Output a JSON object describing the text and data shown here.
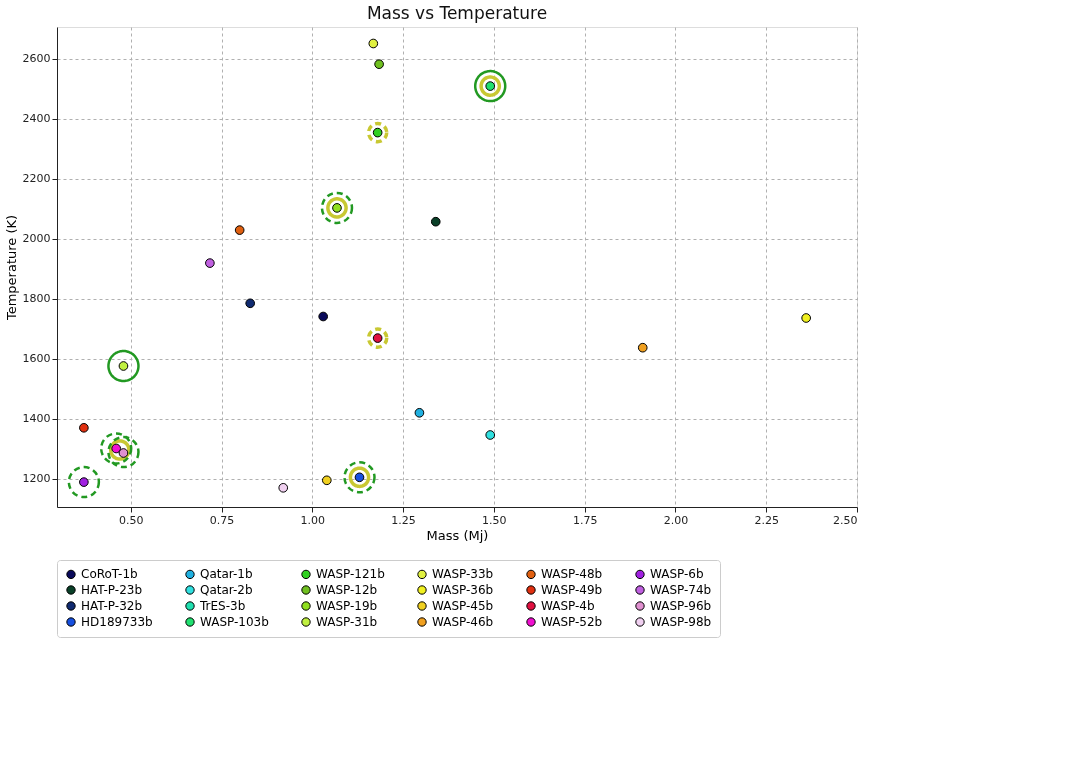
{
  "chart_data": {
    "type": "scatter",
    "title": "Mass vs Temperature",
    "xlabel": "Mass (Mj)",
    "ylabel": "Temperature (K)",
    "xlim": [
      0.297,
      2.5
    ],
    "ylim": [
      1105,
      2705
    ],
    "xticks": [
      {
        "value": 0.5,
        "label": "0.50"
      },
      {
        "value": 0.75,
        "label": "0.75"
      },
      {
        "value": 1.0,
        "label": "1.00"
      },
      {
        "value": 1.25,
        "label": "1.25"
      },
      {
        "value": 1.5,
        "label": "1.50"
      },
      {
        "value": 1.75,
        "label": "1.75"
      },
      {
        "value": 2.0,
        "label": "2.00"
      },
      {
        "value": 2.25,
        "label": "2.25"
      },
      {
        "value": 2.5,
        "label": "2.50"
      }
    ],
    "yticks": [
      1200,
      1400,
      1600,
      1800,
      2000,
      2200,
      2400,
      2600
    ],
    "grid": true,
    "legend": "bottom",
    "marker": "circle",
    "series": [
      {
        "color": "#c8c832",
        "line_style": "solid",
        "x": [
          1.49,
          1.068,
          0.47,
          1.13
        ],
        "values": [
          2508,
          2102,
          1295,
          1204
        ]
      },
      {
        "color": "#c8c832",
        "line_style": "dashed",
        "x": [
          1.18,
          1.18
        ],
        "values": [
          2353,
          1668
        ]
      },
      {
        "color": "#229922",
        "line_style": "solid",
        "x": [
          1.49,
          0.48
        ],
        "values": [
          2508,
          1575
        ]
      },
      {
        "color": "#229922",
        "line_style": "dashed",
        "x": [
          1.068,
          0.46,
          0.48,
          1.13,
          0.371
        ],
        "values": [
          2102,
          1300,
          1288,
          1204,
          1188
        ]
      },
      {
        "name": "CoRoT-1b",
        "color": "#0a0a5a",
        "x": [
          1.03
        ],
        "values": [
          1740
        ]
      },
      {
        "name": "HAT-P-23b",
        "color": "#0a4028",
        "x": [
          1.34
        ],
        "values": [
          2056
        ]
      },
      {
        "name": "HAT-P-32b",
        "color": "#102a70",
        "x": [
          0.829
        ],
        "values": [
          1784
        ]
      },
      {
        "name": "HD189733b",
        "color": "#1650e0",
        "x": [
          1.13
        ],
        "values": [
          1204
        ]
      },
      {
        "name": "Qatar-1b",
        "color": "#20b0e0",
        "x": [
          1.295
        ],
        "values": [
          1419
        ]
      },
      {
        "name": "Qatar-2b",
        "color": "#30e0e0",
        "x": [
          1.49
        ],
        "values": [
          1345
        ]
      },
      {
        "name": "TrES-3b",
        "color": "#20e0b0",
        "x": [
          null
        ],
        "values": [
          null
        ]
      },
      {
        "name": "WASP-103b",
        "color": "#20e070",
        "x": [
          1.49
        ],
        "values": [
          2508
        ]
      },
      {
        "name": "WASP-121b",
        "color": "#30d020",
        "x": [
          1.18
        ],
        "values": [
          2353
        ]
      },
      {
        "name": "WASP-12b",
        "color": "#70c020",
        "x": [
          1.184
        ],
        "values": [
          2581
        ]
      },
      {
        "name": "WASP-19b",
        "color": "#90e020",
        "x": [
          1.068
        ],
        "values": [
          2102
        ]
      },
      {
        "name": "WASP-31b",
        "color": "#c0f040",
        "x": [
          0.48
        ],
        "values": [
          1575
        ]
      },
      {
        "name": "WASP-33b",
        "color": "#e0f040",
        "x": [
          1.168
        ],
        "values": [
          2650
        ]
      },
      {
        "name": "WASP-36b",
        "color": "#f0f020",
        "x": [
          2.36
        ],
        "values": [
          1735
        ]
      },
      {
        "name": "WASP-45b",
        "color": "#f0d020",
        "x": [
          1.04
        ],
        "values": [
          1194
        ]
      },
      {
        "name": "WASP-46b",
        "color": "#f0a020",
        "x": [
          1.91
        ],
        "values": [
          1636
        ]
      },
      {
        "name": "WASP-48b",
        "color": "#e06010",
        "x": [
          0.8
        ],
        "values": [
          2028
        ]
      },
      {
        "name": "WASP-49b",
        "color": "#e03010",
        "x": [
          0.371
        ],
        "values": [
          1369
        ]
      },
      {
        "name": "WASP-4b",
        "color": "#e01040",
        "x": [
          1.18
        ],
        "values": [
          1668
        ]
      },
      {
        "name": "WASP-52b",
        "color": "#f010d0",
        "x": [
          0.46
        ],
        "values": [
          1300
        ]
      },
      {
        "name": "WASP-6b",
        "color": "#a020e0",
        "x": [
          0.371
        ],
        "values": [
          1188
        ]
      },
      {
        "name": "WASP-74b",
        "color": "#c060e0",
        "x": [
          0.718
        ],
        "values": [
          1918
        ]
      },
      {
        "name": "WASP-96b",
        "color": "#e090d0",
        "x": [
          0.48
        ],
        "values": [
          1285
        ]
      },
      {
        "name": "WASP-98b",
        "color": "#f0d0f0",
        "x": [
          0.92
        ],
        "values": [
          1169
        ]
      }
    ]
  }
}
